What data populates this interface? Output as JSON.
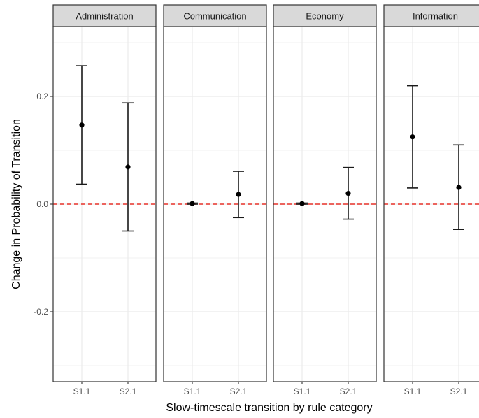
{
  "chart_data": {
    "type": "errorbar",
    "xlabel": "Slow-timescale transition by rule category",
    "ylabel": "Change in Probability of Transition",
    "ylim": [
      -0.31,
      0.33
    ],
    "y_ticks": [
      -0.2,
      0.0,
      0.2
    ],
    "y_tick_labels": [
      "-0.2",
      "0.0",
      "0.2"
    ],
    "categories": [
      "S1.1",
      "S2.1"
    ],
    "reference_line": {
      "y": 0,
      "color": "#e8322b",
      "style": "dashed"
    },
    "grid": true,
    "panels": [
      {
        "title": "Administration",
        "points": [
          {
            "x": "S1.1",
            "y": 0.147,
            "ymin": 0.037,
            "ymax": 0.257
          },
          {
            "x": "S2.1",
            "y": 0.069,
            "ymin": -0.05,
            "ymax": 0.188
          }
        ]
      },
      {
        "title": "Communication",
        "points": [
          {
            "x": "S1.1",
            "y": 0.001,
            "ymin": 0.0,
            "ymax": 0.002
          },
          {
            "x": "S2.1",
            "y": 0.018,
            "ymin": -0.025,
            "ymax": 0.061
          }
        ]
      },
      {
        "title": "Economy",
        "points": [
          {
            "x": "S1.1",
            "y": 0.001,
            "ymin": 0.0,
            "ymax": 0.002
          },
          {
            "x": "S2.1",
            "y": 0.02,
            "ymin": -0.028,
            "ymax": 0.068
          }
        ]
      },
      {
        "title": "Information",
        "points": [
          {
            "x": "S1.1",
            "y": 0.125,
            "ymin": 0.03,
            "ymax": 0.22
          },
          {
            "x": "S2.1",
            "y": 0.031,
            "ymin": -0.047,
            "ymax": 0.11
          }
        ]
      }
    ]
  }
}
